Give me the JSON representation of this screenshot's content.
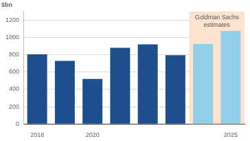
{
  "chart_data": {
    "type": "bar",
    "y_label": "$bn",
    "categories": [
      "2018",
      null,
      "2020",
      null,
      null,
      null,
      null,
      "2025"
    ],
    "values": [
      805,
      730,
      520,
      880,
      920,
      795,
      925,
      1075
    ],
    "colors": [
      "#1f4e8c",
      "#1f4e8c",
      "#1f4e8c",
      "#1f4e8c",
      "#1f4e8c",
      "#1f4e8c",
      "#93cfe8",
      "#93cfe8"
    ],
    "ylim": [
      0,
      1300
    ],
    "yticks": [
      0,
      200,
      400,
      600,
      800,
      1000,
      1200
    ],
    "grid": true,
    "annotations": [
      {
        "text": "Goldman Sachs estimates",
        "span": [
          6,
          7
        ],
        "color": "#fde2cf"
      }
    ]
  }
}
